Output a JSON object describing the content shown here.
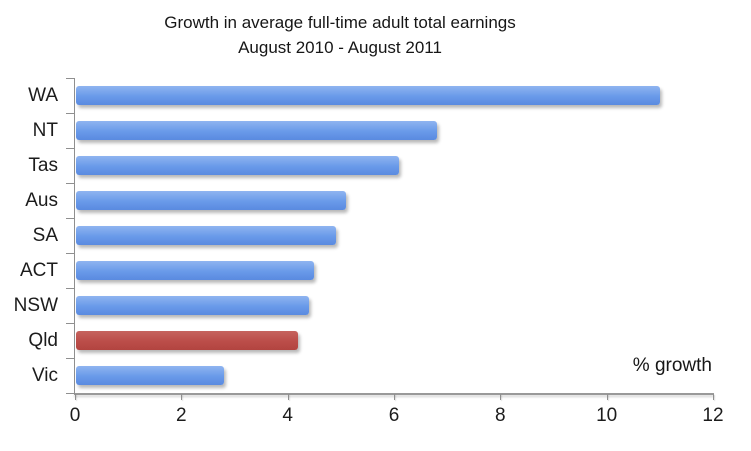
{
  "chart_data": {
    "type": "bar",
    "orientation": "horizontal",
    "title": "Growth in average full-time adult total earnings",
    "subtitle": "August 2010 - August 2011",
    "categories": [
      "WA",
      "NT",
      "Tas",
      "Aus",
      "SA",
      "ACT",
      "NSW",
      "Qld",
      "Vic"
    ],
    "values": [
      11.0,
      6.8,
      6.1,
      5.1,
      4.9,
      4.5,
      4.4,
      4.2,
      2.8
    ],
    "highlighted_category": "Qld",
    "annotation": "% growth",
    "xlabel": "",
    "ylabel": "",
    "xlim": [
      0,
      12
    ],
    "x_ticks": [
      0,
      2,
      4,
      6,
      8,
      10,
      12
    ],
    "grid": false,
    "legend": false,
    "colors": {
      "bar_default": "#699ae9",
      "bar_highlight": "#bb4d49",
      "axis": "#8f8f8f",
      "text": "#1c1c1c"
    }
  }
}
